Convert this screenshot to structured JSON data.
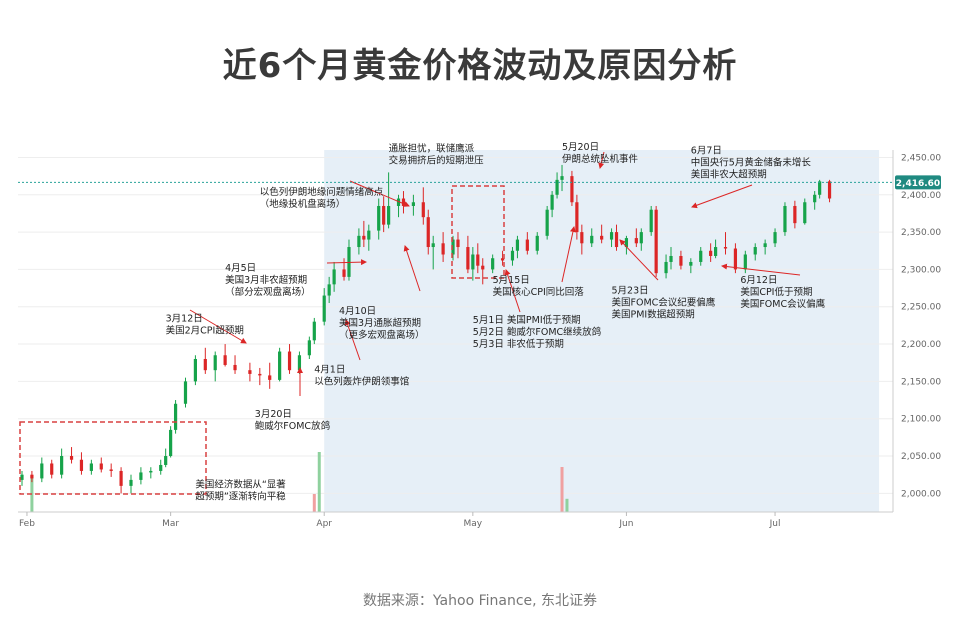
{
  "title": "近6个月黄金价格波动及原因分析",
  "source": "数据来源：Yahoo Finance, 东北证券",
  "chart_data": {
    "type": "candlestick",
    "ylim": [
      1975,
      2460
    ],
    "yticks": [
      2000,
      2050,
      2100,
      2150,
      2200,
      2250,
      2300,
      2350,
      2400,
      2450
    ],
    "ytick_labels": [
      "2,000.00",
      "2,050.00",
      "2,100.00",
      "2,150.00",
      "2,200.00",
      "2,250.00",
      "2,300.00",
      "2,350.00",
      "2,400.00",
      "2,450.00"
    ],
    "x_labels": [
      {
        "label": "Feb",
        "day": 1
      },
      {
        "label": "Mar",
        "day": 30
      },
      {
        "label": "Apr",
        "day": 61
      },
      {
        "label": "May",
        "day": 91
      },
      {
        "label": "Jun",
        "day": 122
      },
      {
        "label": "Jul",
        "day": 152
      }
    ],
    "current_price": 2416.6,
    "current_price_label": "2,416.60",
    "highlight_regions": [
      [
        61,
        173
      ],
      [
        71,
        102
      ]
    ],
    "candles": [
      {
        "d": 0,
        "o": 2018,
        "h": 2030,
        "l": 2010,
        "c": 2025
      },
      {
        "d": 2,
        "o": 2025,
        "h": 2030,
        "l": 2015,
        "c": 2020
      },
      {
        "d": 4,
        "o": 2020,
        "h": 2048,
        "l": 2015,
        "c": 2040
      },
      {
        "d": 6,
        "o": 2040,
        "h": 2045,
        "l": 2020,
        "c": 2025
      },
      {
        "d": 8,
        "o": 2025,
        "h": 2060,
        "l": 2020,
        "c": 2050
      },
      {
        "d": 10,
        "o": 2050,
        "h": 2062,
        "l": 2040,
        "c": 2045
      },
      {
        "d": 12,
        "o": 2045,
        "h": 2055,
        "l": 2025,
        "c": 2030
      },
      {
        "d": 14,
        "o": 2030,
        "h": 2045,
        "l": 2025,
        "c": 2040
      },
      {
        "d": 16,
        "o": 2040,
        "h": 2048,
        "l": 2028,
        "c": 2032
      },
      {
        "d": 18,
        "o": 2032,
        "h": 2040,
        "l": 2022,
        "c": 2030
      },
      {
        "d": 20,
        "o": 2030,
        "h": 2035,
        "l": 2000,
        "c": 2010
      },
      {
        "d": 22,
        "o": 2010,
        "h": 2025,
        "l": 2000,
        "c": 2018
      },
      {
        "d": 24,
        "o": 2018,
        "h": 2035,
        "l": 2012,
        "c": 2028
      },
      {
        "d": 26,
        "o": 2028,
        "h": 2035,
        "l": 2020,
        "c": 2030
      },
      {
        "d": 28,
        "o": 2030,
        "h": 2045,
        "l": 2025,
        "c": 2038
      },
      {
        "d": 29,
        "o": 2038,
        "h": 2060,
        "l": 2035,
        "c": 2050
      },
      {
        "d": 30,
        "o": 2050,
        "h": 2090,
        "l": 2048,
        "c": 2085
      },
      {
        "d": 31,
        "o": 2085,
        "h": 2125,
        "l": 2080,
        "c": 2120
      },
      {
        "d": 33,
        "o": 2120,
        "h": 2155,
        "l": 2115,
        "c": 2150
      },
      {
        "d": 35,
        "o": 2150,
        "h": 2185,
        "l": 2145,
        "c": 2180
      },
      {
        "d": 37,
        "o": 2180,
        "h": 2195,
        "l": 2160,
        "c": 2165
      },
      {
        "d": 39,
        "o": 2165,
        "h": 2190,
        "l": 2150,
        "c": 2185
      },
      {
        "d": 41,
        "o": 2185,
        "h": 2200,
        "l": 2170,
        "c": 2172
      },
      {
        "d": 43,
        "o": 2172,
        "h": 2185,
        "l": 2160,
        "c": 2165
      },
      {
        "d": 46,
        "o": 2165,
        "h": 2175,
        "l": 2150,
        "c": 2160
      },
      {
        "d": 48,
        "o": 2160,
        "h": 2168,
        "l": 2145,
        "c": 2158
      },
      {
        "d": 50,
        "o": 2158,
        "h": 2175,
        "l": 2140,
        "c": 2152
      },
      {
        "d": 52,
        "o": 2152,
        "h": 2195,
        "l": 2150,
        "c": 2190
      },
      {
        "d": 54,
        "o": 2190,
        "h": 2200,
        "l": 2160,
        "c": 2165
      },
      {
        "d": 56,
        "o": 2165,
        "h": 2190,
        "l": 2160,
        "c": 2185
      },
      {
        "d": 58,
        "o": 2185,
        "h": 2210,
        "l": 2180,
        "c": 2205
      },
      {
        "d": 59,
        "o": 2205,
        "h": 2235,
        "l": 2200,
        "c": 2230
      },
      {
        "d": 61,
        "o": 2230,
        "h": 2275,
        "l": 2225,
        "c": 2265
      },
      {
        "d": 62,
        "o": 2265,
        "h": 2290,
        "l": 2255,
        "c": 2280
      },
      {
        "d": 63,
        "o": 2280,
        "h": 2310,
        "l": 2270,
        "c": 2300
      },
      {
        "d": 65,
        "o": 2300,
        "h": 2315,
        "l": 2285,
        "c": 2290
      },
      {
        "d": 66,
        "o": 2290,
        "h": 2340,
        "l": 2285,
        "c": 2330
      },
      {
        "d": 68,
        "o": 2330,
        "h": 2355,
        "l": 2320,
        "c": 2345
      },
      {
        "d": 69,
        "o": 2345,
        "h": 2365,
        "l": 2330,
        "c": 2340
      },
      {
        "d": 70,
        "o": 2340,
        "h": 2360,
        "l": 2325,
        "c": 2352
      },
      {
        "d": 72,
        "o": 2352,
        "h": 2395,
        "l": 2340,
        "c": 2385
      },
      {
        "d": 73,
        "o": 2385,
        "h": 2398,
        "l": 2350,
        "c": 2360
      },
      {
        "d": 74,
        "o": 2360,
        "h": 2430,
        "l": 2355,
        "c": 2385
      },
      {
        "d": 76,
        "o": 2385,
        "h": 2400,
        "l": 2370,
        "c": 2395
      },
      {
        "d": 77,
        "o": 2395,
        "h": 2405,
        "l": 2375,
        "c": 2385
      },
      {
        "d": 79,
        "o": 2385,
        "h": 2400,
        "l": 2372,
        "c": 2390
      },
      {
        "d": 81,
        "o": 2390,
        "h": 2410,
        "l": 2360,
        "c": 2370
      },
      {
        "d": 82,
        "o": 2370,
        "h": 2380,
        "l": 2320,
        "c": 2330
      },
      {
        "d": 83,
        "o": 2330,
        "h": 2345,
        "l": 2300,
        "c": 2335
      },
      {
        "d": 85,
        "o": 2335,
        "h": 2350,
        "l": 2310,
        "c": 2320
      },
      {
        "d": 87,
        "o": 2320,
        "h": 2345,
        "l": 2312,
        "c": 2340
      },
      {
        "d": 88,
        "o": 2340,
        "h": 2350,
        "l": 2315,
        "c": 2330
      },
      {
        "d": 90,
        "o": 2330,
        "h": 2345,
        "l": 2295,
        "c": 2300
      },
      {
        "d": 91,
        "o": 2300,
        "h": 2330,
        "l": 2285,
        "c": 2320
      },
      {
        "d": 92,
        "o": 2320,
        "h": 2335,
        "l": 2295,
        "c": 2305
      },
      {
        "d": 93,
        "o": 2305,
        "h": 2315,
        "l": 2280,
        "c": 2300
      },
      {
        "d": 95,
        "o": 2300,
        "h": 2320,
        "l": 2295,
        "c": 2315
      },
      {
        "d": 97,
        "o": 2315,
        "h": 2325,
        "l": 2305,
        "c": 2312
      },
      {
        "d": 99,
        "o": 2312,
        "h": 2330,
        "l": 2305,
        "c": 2325
      },
      {
        "d": 100,
        "o": 2325,
        "h": 2345,
        "l": 2315,
        "c": 2340
      },
      {
        "d": 102,
        "o": 2340,
        "h": 2350,
        "l": 2320,
        "c": 2325
      },
      {
        "d": 104,
        "o": 2325,
        "h": 2350,
        "l": 2320,
        "c": 2345
      },
      {
        "d": 106,
        "o": 2345,
        "h": 2385,
        "l": 2340,
        "c": 2380
      },
      {
        "d": 107,
        "o": 2380,
        "h": 2405,
        "l": 2370,
        "c": 2400
      },
      {
        "d": 108,
        "o": 2400,
        "h": 2430,
        "l": 2395,
        "c": 2420
      },
      {
        "d": 109,
        "o": 2420,
        "h": 2440,
        "l": 2405,
        "c": 2425
      },
      {
        "d": 111,
        "o": 2425,
        "h": 2432,
        "l": 2385,
        "c": 2390
      },
      {
        "d": 112,
        "o": 2390,
        "h": 2400,
        "l": 2340,
        "c": 2350
      },
      {
        "d": 113,
        "o": 2350,
        "h": 2360,
        "l": 2320,
        "c": 2335
      },
      {
        "d": 115,
        "o": 2335,
        "h": 2355,
        "l": 2330,
        "c": 2345
      },
      {
        "d": 117,
        "o": 2345,
        "h": 2360,
        "l": 2335,
        "c": 2340
      },
      {
        "d": 119,
        "o": 2340,
        "h": 2355,
        "l": 2330,
        "c": 2350
      },
      {
        "d": 120,
        "o": 2350,
        "h": 2360,
        "l": 2325,
        "c": 2330
      },
      {
        "d": 122,
        "o": 2330,
        "h": 2345,
        "l": 2320,
        "c": 2342
      },
      {
        "d": 124,
        "o": 2342,
        "h": 2355,
        "l": 2330,
        "c": 2335
      },
      {
        "d": 125,
        "o": 2335,
        "h": 2355,
        "l": 2325,
        "c": 2350
      },
      {
        "d": 127,
        "o": 2350,
        "h": 2385,
        "l": 2345,
        "c": 2380
      },
      {
        "d": 128,
        "o": 2380,
        "h": 2385,
        "l": 2290,
        "c": 2295
      },
      {
        "d": 130,
        "o": 2295,
        "h": 2320,
        "l": 2288,
        "c": 2310
      },
      {
        "d": 131,
        "o": 2310,
        "h": 2330,
        "l": 2300,
        "c": 2318
      },
      {
        "d": 133,
        "o": 2318,
        "h": 2325,
        "l": 2300,
        "c": 2305
      },
      {
        "d": 135,
        "o": 2305,
        "h": 2315,
        "l": 2295,
        "c": 2310
      },
      {
        "d": 137,
        "o": 2310,
        "h": 2330,
        "l": 2305,
        "c": 2325
      },
      {
        "d": 139,
        "o": 2325,
        "h": 2335,
        "l": 2310,
        "c": 2318
      },
      {
        "d": 140,
        "o": 2318,
        "h": 2340,
        "l": 2315,
        "c": 2330
      },
      {
        "d": 142,
        "o": 2330,
        "h": 2350,
        "l": 2320,
        "c": 2328
      },
      {
        "d": 144,
        "o": 2328,
        "h": 2335,
        "l": 2295,
        "c": 2300
      },
      {
        "d": 146,
        "o": 2300,
        "h": 2325,
        "l": 2295,
        "c": 2320
      },
      {
        "d": 148,
        "o": 2320,
        "h": 2335,
        "l": 2312,
        "c": 2330
      },
      {
        "d": 150,
        "o": 2330,
        "h": 2340,
        "l": 2320,
        "c": 2335
      },
      {
        "d": 152,
        "o": 2335,
        "h": 2355,
        "l": 2330,
        "c": 2350
      },
      {
        "d": 154,
        "o": 2350,
        "h": 2390,
        "l": 2345,
        "c": 2385
      },
      {
        "d": 156,
        "o": 2385,
        "h": 2392,
        "l": 2355,
        "c": 2362
      },
      {
        "d": 158,
        "o": 2362,
        "h": 2395,
        "l": 2360,
        "c": 2390
      },
      {
        "d": 160,
        "o": 2390,
        "h": 2405,
        "l": 2380,
        "c": 2400
      },
      {
        "d": 161,
        "o": 2400,
        "h": 2420,
        "l": 2395,
        "c": 2418
      },
      {
        "d": 163,
        "o": 2418,
        "h": 2420,
        "l": 2390,
        "c": 2395
      }
    ],
    "volume_bars": [
      {
        "d": 2,
        "v": 0.6,
        "dir": "up"
      },
      {
        "d": 60,
        "v": 1.0,
        "dir": "up"
      },
      {
        "d": 59,
        "v": 0.3,
        "dir": "down"
      },
      {
        "d": 109,
        "v": 0.75,
        "dir": "down"
      },
      {
        "d": 110,
        "v": 0.22,
        "dir": "up"
      }
    ],
    "annotations": [
      {
        "lines": [
          "美国经济数据从“显著",
          "超预期”逐渐转向平稳"
        ],
        "d": 36,
        "p": 2008,
        "anchor": "start"
      },
      {
        "lines": [
          "3月12日",
          "美国2月CPI超预期"
        ],
        "d": 30,
        "p": 2230,
        "anchor": "start"
      },
      {
        "lines": [
          "3月20日",
          "鲍威尔FOMC放鸽"
        ],
        "d": 48,
        "p": 2102,
        "anchor": "start"
      },
      {
        "lines": [
          "4月5日",
          "美国3月非农超预期",
          "（部分宏观盘离场）"
        ],
        "d": 42,
        "p": 2298,
        "anchor": "start"
      },
      {
        "lines": [
          "以色列伊朗地缘问题情绪高点",
          "（地缘投机盘离场）"
        ],
        "d": 49,
        "p": 2400,
        "anchor": "start"
      },
      {
        "lines": [
          "4月1日",
          "以色列轰炸伊朗领事馆"
        ],
        "d": 60,
        "p": 2162,
        "anchor": "start"
      },
      {
        "lines": [
          "4月10日",
          "美国3月通胀超预期",
          "（更多宏观盘离场）"
        ],
        "d": 65,
        "p": 2240,
        "anchor": "start"
      },
      {
        "lines": [
          "通胀担忧，联储鹰派",
          "交易拥挤后的短期泄压"
        ],
        "d": 75,
        "p": 2458,
        "anchor": "start"
      },
      {
        "lines": [
          "5月1日  美国PMI低于预期",
          "5月2日  鲍威尔FOMC继续放鸽",
          "5月3日  非农低于预期"
        ],
        "d": 92,
        "p": 2228,
        "anchor": "start"
      },
      {
        "lines": [
          "5月15日",
          "美国核心CPI同比回落"
        ],
        "d": 96,
        "p": 2282,
        "anchor": "start"
      },
      {
        "lines": [
          "5月20日",
          "伊朗总统坠机事件"
        ],
        "d": 110,
        "p": 2460,
        "anchor": "start"
      },
      {
        "lines": [
          "5月23日",
          "美国FOMC会议纪要偏鹰",
          "美国PMI数据超预期"
        ],
        "d": 120,
        "p": 2268,
        "anchor": "start"
      },
      {
        "lines": [
          "6月7日",
          "中国央行5月黄金储备未增长",
          "美国非农大超预期"
        ],
        "d": 136,
        "p": 2455,
        "anchor": "start"
      },
      {
        "lines": [
          "6月12日",
          "美国CPI低于预期",
          "美国FOMC会议偏鹰"
        ],
        "d": 146,
        "p": 2282,
        "anchor": "start"
      }
    ]
  },
  "colors": {
    "up": "#16a34a",
    "down": "#dc2626",
    "annotation_box": "#d94040",
    "arrow": "#dc2626",
    "highlight": "#e6eff7",
    "price_line": "#2aa39a",
    "price_badge": "#1f8a81",
    "grid": "#eeeeee"
  }
}
